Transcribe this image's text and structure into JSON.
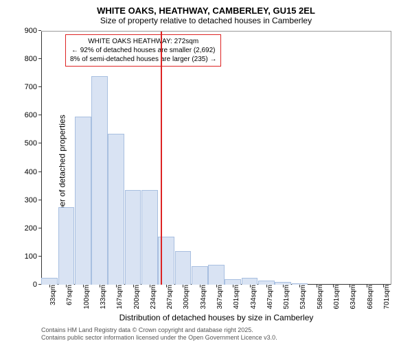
{
  "title_main": "WHITE OAKS, HEATHWAY, CAMBERLEY, GU15 2EL",
  "title_sub": "Size of property relative to detached houses in Camberley",
  "y_axis_label": "Number of detached properties",
  "x_axis_label": "Distribution of detached houses by size in Camberley",
  "footer_line1": "Contains HM Land Registry data © Crown copyright and database right 2025.",
  "footer_line2": "Contains public sector information licensed under the Open Government Licence v3.0.",
  "chart": {
    "ylim_max": 900,
    "ytick_step": 100,
    "bar_fill": "#d9e3f3",
    "bar_stroke": "#a8bfe0",
    "marker_color": "#dd2222",
    "annotation_border": "#dd2222",
    "x_categories": [
      "33sqm",
      "67sqm",
      "100sqm",
      "133sqm",
      "167sqm",
      "200sqm",
      "234sqm",
      "267sqm",
      "300sqm",
      "334sqm",
      "367sqm",
      "401sqm",
      "434sqm",
      "467sqm",
      "501sqm",
      "534sqm",
      "568sqm",
      "601sqm",
      "634sqm",
      "668sqm",
      "701sqm"
    ],
    "values": [
      25,
      275,
      595,
      740,
      535,
      335,
      335,
      170,
      120,
      65,
      70,
      20,
      25,
      15,
      10,
      5,
      0,
      0,
      0,
      0,
      0
    ],
    "marker_category_index": 7,
    "annotation": {
      "line1": "WHITE OAKS HEATHWAY: 272sqm",
      "line2": "← 92% of detached houses are smaller (2,692)",
      "line3": "8% of semi-detached houses are larger (235) →"
    }
  }
}
